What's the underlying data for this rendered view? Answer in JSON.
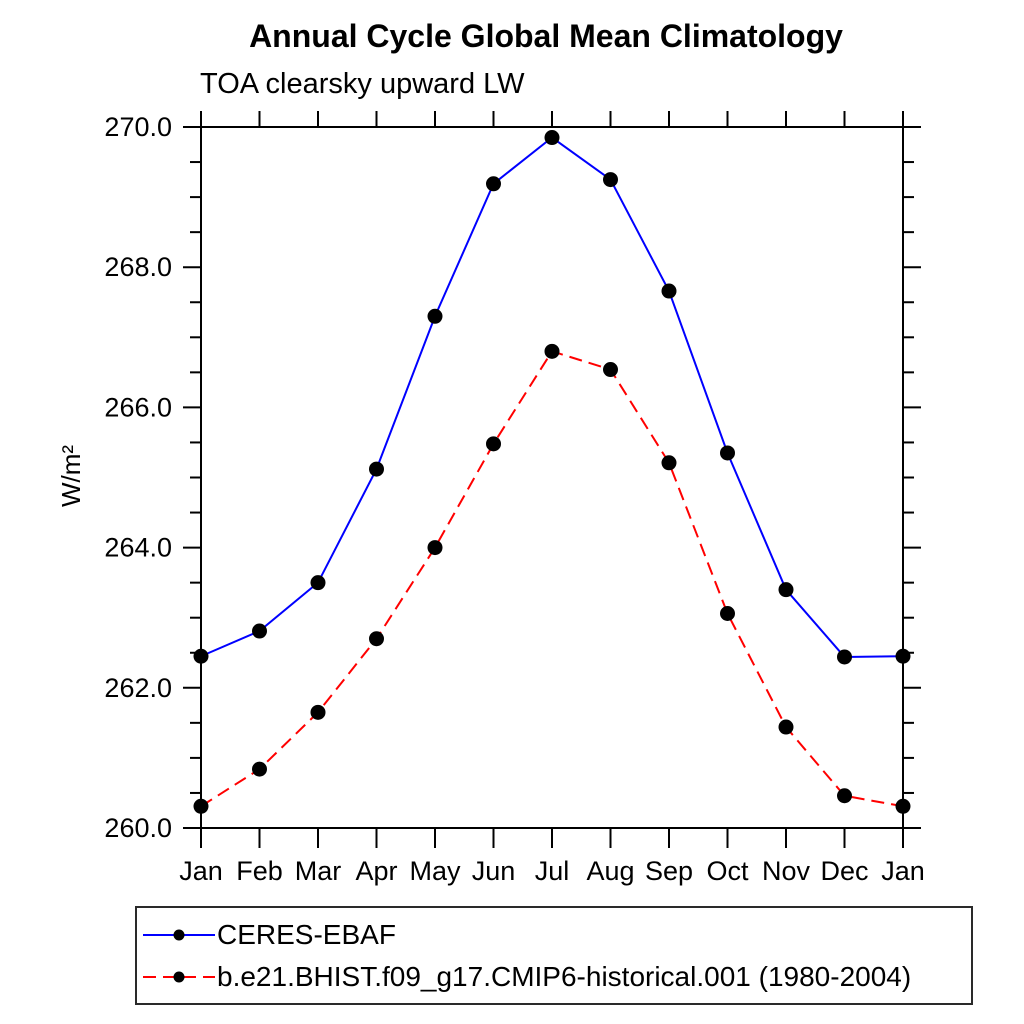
{
  "chart_data": {
    "type": "line",
    "title": "Annual Cycle Global Mean Climatology",
    "subtitle": "TOA clearsky upward LW",
    "ylabel": "W/m²",
    "xlabel": "",
    "categories": [
      "Jan",
      "Feb",
      "Mar",
      "Apr",
      "May",
      "Jun",
      "Jul",
      "Aug",
      "Sep",
      "Oct",
      "Nov",
      "Dec",
      "Jan"
    ],
    "ylim": [
      260.0,
      270.0
    ],
    "ytick_major": 2.0,
    "ytick_minor": 0.5,
    "ytick_label_format": "one-decimal",
    "grid": false,
    "legend_position": "bottom-left-box",
    "axis_color": "#000000",
    "marker_color": "#000000",
    "series": [
      {
        "name": "CERES-EBAF",
        "color": "#0000ff",
        "line_style": "solid",
        "marker": "circle",
        "values": [
          262.45,
          262.81,
          263.5,
          265.12,
          267.3,
          269.19,
          269.85,
          269.25,
          267.66,
          265.35,
          263.4,
          262.44,
          262.45
        ]
      },
      {
        "name": "b.e21.BHIST.f09_g17.CMIP6-historical.001 (1980-2004)",
        "color": "#ff0000",
        "line_style": "dashed",
        "marker": "circle",
        "values": [
          260.31,
          260.84,
          261.65,
          262.7,
          264.0,
          265.48,
          266.8,
          266.54,
          265.21,
          263.06,
          261.44,
          260.46,
          260.31
        ]
      }
    ]
  }
}
